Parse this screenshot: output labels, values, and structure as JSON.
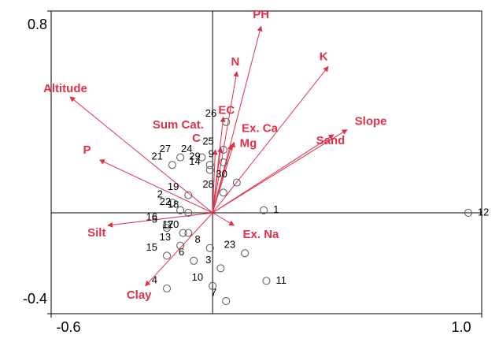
{
  "chart_data": {
    "type": "biplot",
    "xlim": [
      -0.6,
      1.0
    ],
    "ylim": [
      -0.4,
      0.8
    ],
    "xticks": [
      -0.6,
      {
        "value": 1.0,
        "label": "1.0"
      }
    ],
    "yticks": [
      0.8,
      -0.4
    ],
    "sites": {
      "color": "#555555",
      "labels": [
        "1",
        "2",
        "3",
        "4",
        "5",
        "6",
        "7",
        "8",
        "9",
        "10",
        "11",
        "12",
        "13",
        "14",
        "15",
        "16",
        "17",
        "18",
        "19",
        "20",
        "21",
        "22",
        "23",
        "24",
        "25",
        "26",
        "27",
        "28",
        "29",
        "30"
      ],
      "x": [
        0.19,
        -0.15,
        0.03,
        -0.17,
        -0.17,
        -0.07,
        0.05,
        -0.01,
        0.04,
        0.0,
        0.2,
        0.95,
        -0.12,
        -0.01,
        -0.17,
        -0.17,
        -0.11,
        -0.09,
        -0.09,
        -0.09,
        -0.15,
        -0.12,
        0.12,
        -0.04,
        0.04,
        0.05,
        -0.12,
        0.04,
        -0.01,
        0.09
      ],
      "y": [
        0.01,
        0.04,
        -0.22,
        -0.3,
        -0.06,
        -0.19,
        -0.35,
        -0.14,
        0.2,
        -0.29,
        -0.27,
        0.0,
        -0.13,
        0.17,
        -0.17,
        -0.05,
        -0.08,
        0.0,
        0.07,
        -0.08,
        0.19,
        0.01,
        -0.16,
        0.22,
        0.25,
        0.36,
        0.22,
        0.08,
        0.19,
        0.12
      ]
    },
    "variables": {
      "color": "#e0304a",
      "labels": [
        "PH",
        "N",
        "K",
        "Altitude",
        "EC",
        "Ex. Ca",
        "Slope",
        "Sand",
        "Sum Cat.",
        "C",
        "Mg",
        "P",
        "Silt",
        "Ex.  Na",
        "Clay"
      ],
      "x": [
        0.18,
        0.09,
        0.43,
        -0.53,
        0.04,
        0.07,
        0.5,
        0.45,
        0.03,
        0.01,
        0.08,
        -0.42,
        -0.39,
        0.08,
        -0.25
      ],
      "y": [
        0.74,
        0.56,
        0.58,
        0.46,
        0.38,
        0.27,
        0.33,
        0.31,
        0.26,
        0.25,
        0.28,
        0.21,
        -0.05,
        -0.05,
        -0.29
      ]
    }
  }
}
